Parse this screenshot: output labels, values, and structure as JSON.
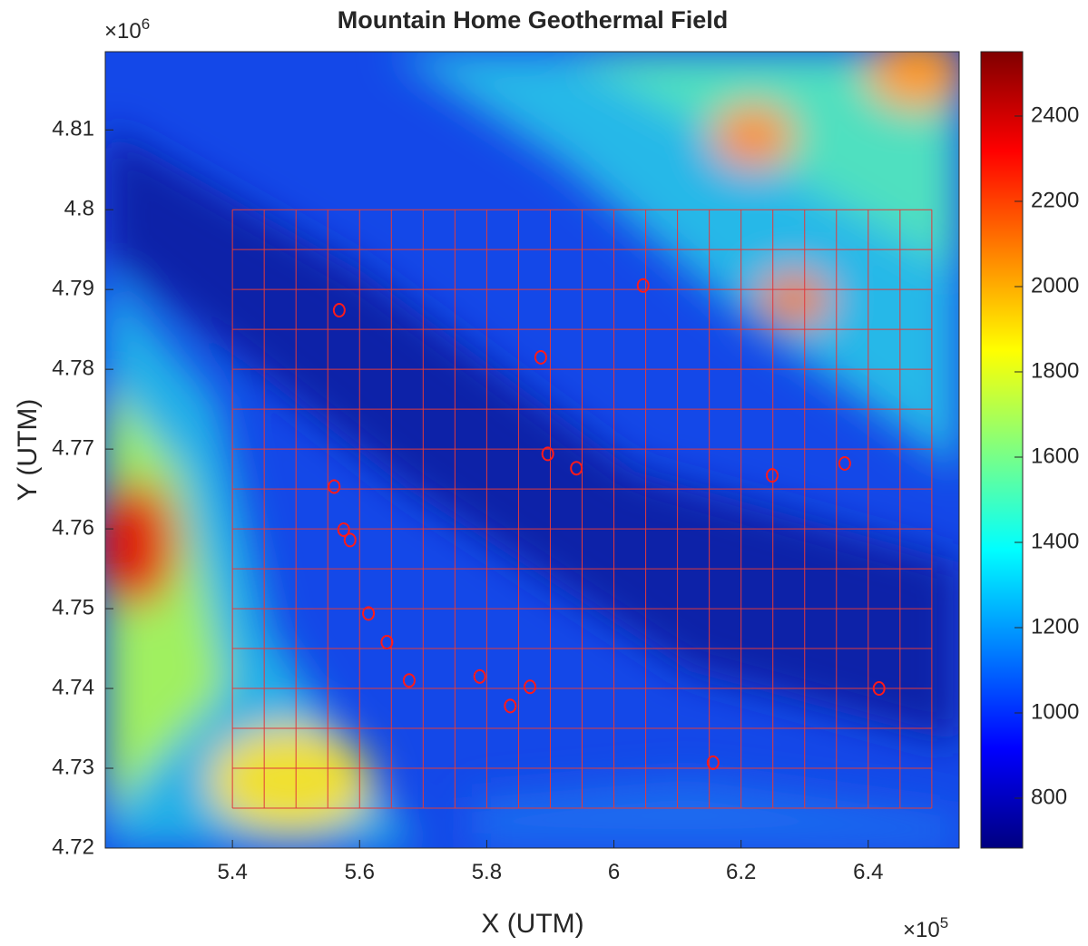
{
  "chart_data": {
    "type": "scatter",
    "title": "Mountain Home Geothermal Field",
    "xlabel": "X (UTM)",
    "ylabel": "Y (UTM)",
    "x_exponent_base": "×10",
    "x_exponent": 5,
    "y_exponent_base": "×10",
    "y_exponent": 6,
    "xlim": [
      5.2,
      6.543
    ],
    "ylim": [
      4.72,
      4.8198
    ],
    "xticks": [
      5.4,
      5.6,
      5.8,
      6,
      6.2,
      6.4
    ],
    "yticks": [
      4.72,
      4.73,
      4.74,
      4.75,
      4.76,
      4.77,
      4.78,
      4.79,
      4.8,
      4.81
    ],
    "mesh_color": "#e23a3a",
    "mesh_x": [
      5.4,
      5.45,
      5.5,
      5.55,
      5.6,
      5.65,
      5.7,
      5.75,
      5.8,
      5.85,
      5.9,
      5.95,
      6,
      6.05,
      6.1,
      6.15,
      6.2,
      6.25,
      6.3,
      6.35,
      6.4,
      6.45,
      6.5
    ],
    "mesh_y": [
      4.725,
      4.73,
      4.735,
      4.74,
      4.745,
      4.75,
      4.755,
      4.76,
      4.765,
      4.77,
      4.775,
      4.78,
      4.785,
      4.79,
      4.795,
      4.8
    ],
    "color": "#ff1a1a",
    "x": [
      6.046,
      5.568,
      5.885,
      5.896,
      5.941,
      6.249,
      6.363,
      5.56,
      5.575,
      5.585,
      5.614,
      5.643,
      5.678,
      5.789,
      5.868,
      5.837,
      6.417,
      6.156
    ],
    "values": [
      4.7905,
      4.7874,
      4.7815,
      4.7694,
      4.7676,
      4.7667,
      4.7682,
      4.7653,
      4.7599,
      4.7586,
      4.7494,
      4.7458,
      4.741,
      4.7415,
      4.7402,
      4.7378,
      4.74,
      4.7307
    ],
    "clim": [
      683,
      2551
    ],
    "cticks": [
      800,
      1000,
      1200,
      1400,
      1600,
      1800,
      2000,
      2200,
      2400
    ],
    "colormap": [
      "#000080",
      "#0000ff",
      "#0080ff",
      "#00ffff",
      "#80ff80",
      "#ffff00",
      "#ff8000",
      "#ff0000",
      "#800000"
    ]
  }
}
